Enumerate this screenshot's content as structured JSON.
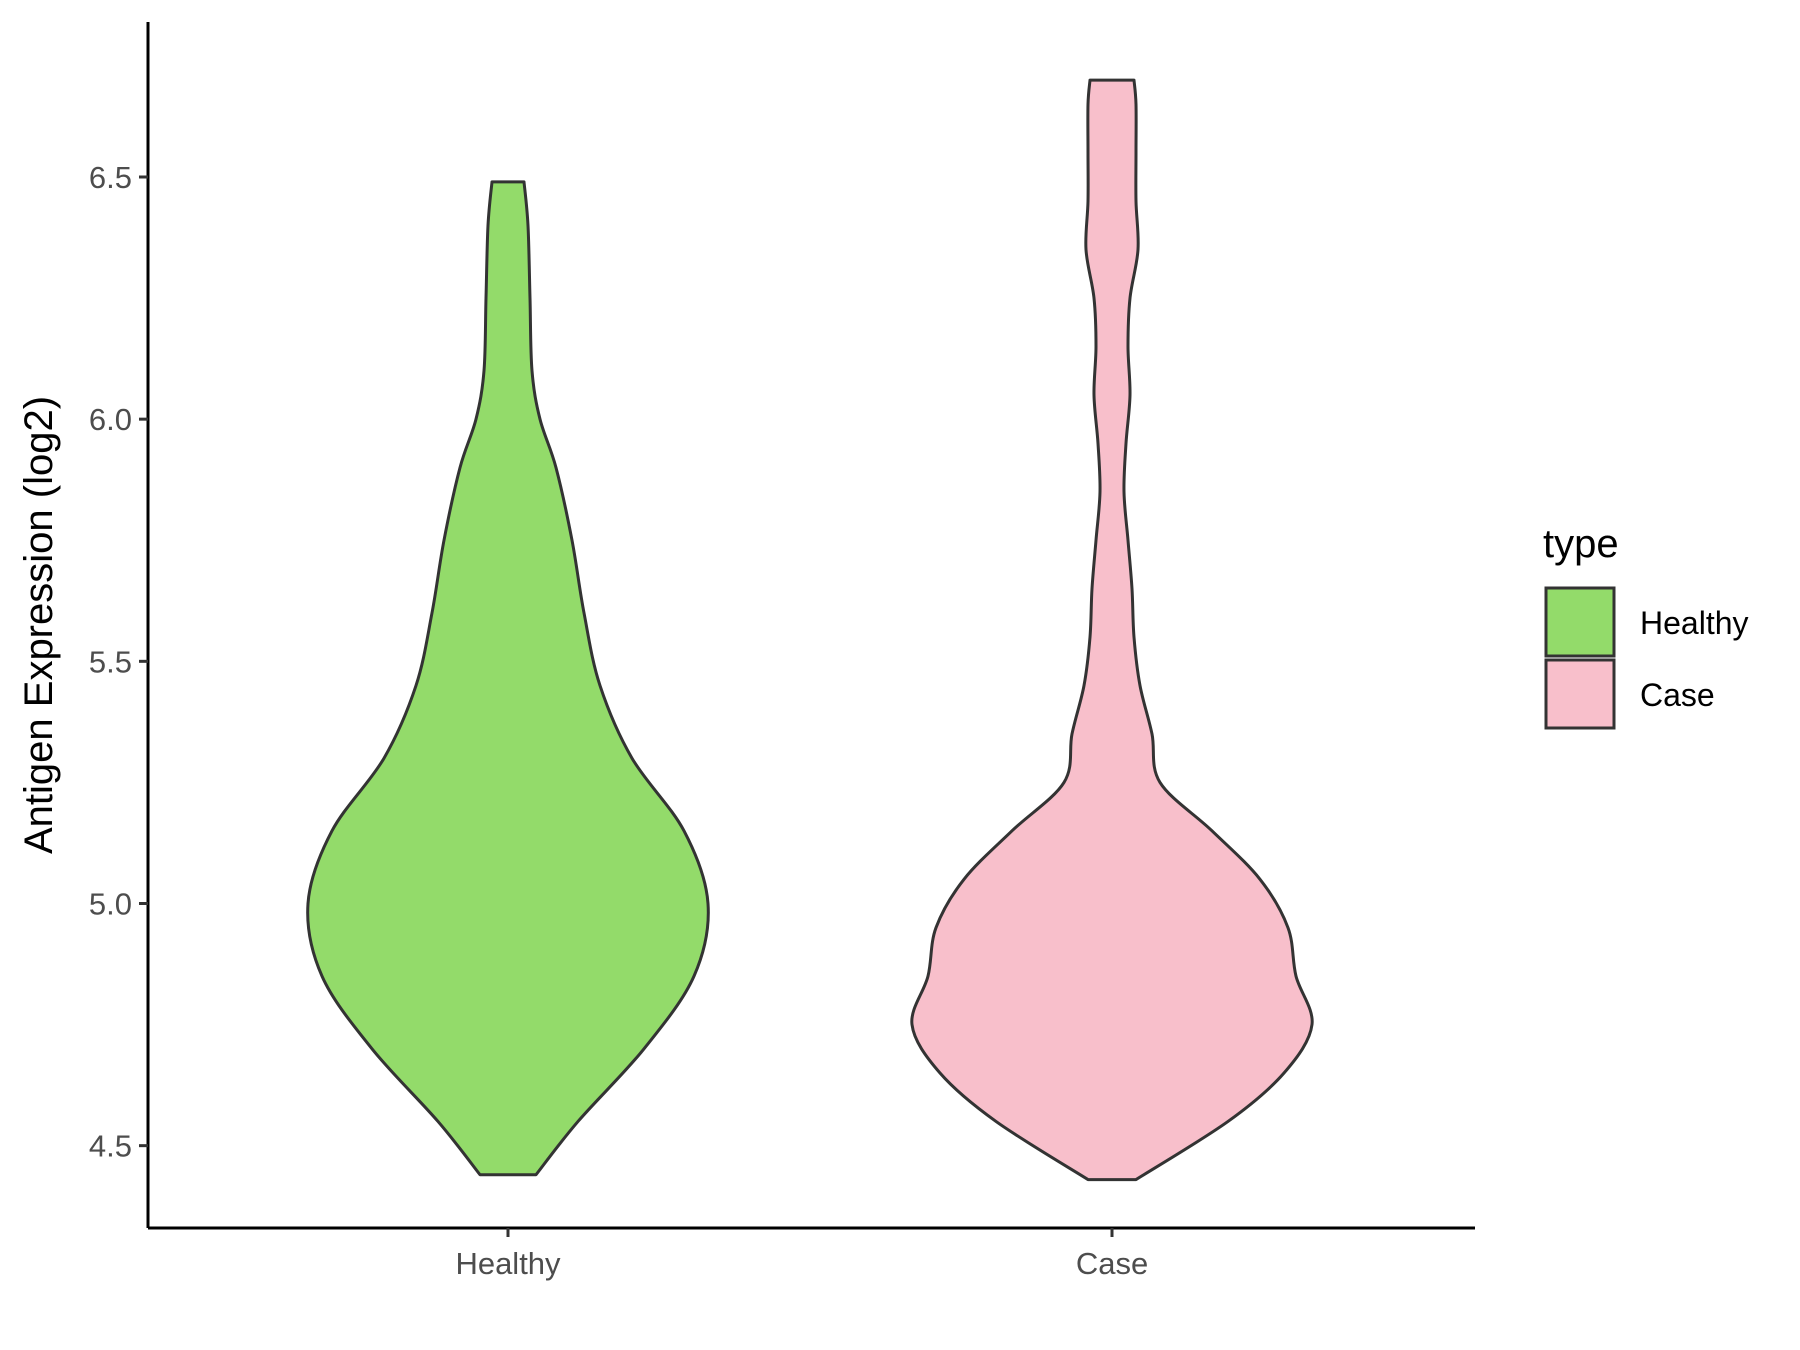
{
  "chart_data": {
    "type": "violin",
    "title": "",
    "xlabel": "",
    "ylabel": "Antigen Expression (log2)",
    "categories": [
      "Healthy",
      "Case"
    ],
    "ylim": [
      4.33,
      6.82
    ],
    "yticks": [
      4.5,
      5.0,
      5.5,
      6.0,
      6.5
    ],
    "ytick_labels": [
      "4.5",
      "5.0",
      "5.5",
      "6.0",
      "6.5"
    ],
    "grid": false,
    "legend": {
      "title": "type",
      "placement": "right",
      "entries": [
        {
          "label": "Healthy",
          "color": "#93DB6A"
        },
        {
          "label": "Case",
          "color": "#F8BFCB"
        }
      ]
    },
    "series": [
      {
        "category": "Healthy",
        "color": "#93DB6A",
        "y_min": 4.44,
        "y_max": 6.49,
        "density_profile": [
          [
            4.44,
            0.14
          ],
          [
            4.55,
            0.35
          ],
          [
            4.7,
            0.68
          ],
          [
            4.85,
            0.93
          ],
          [
            5.0,
            1.0
          ],
          [
            5.15,
            0.88
          ],
          [
            5.3,
            0.62
          ],
          [
            5.45,
            0.46
          ],
          [
            5.6,
            0.38
          ],
          [
            5.75,
            0.32
          ],
          [
            5.9,
            0.24
          ],
          [
            6.0,
            0.16
          ],
          [
            6.1,
            0.12
          ],
          [
            6.25,
            0.11
          ],
          [
            6.4,
            0.1
          ],
          [
            6.49,
            0.08
          ]
        ]
      },
      {
        "category": "Case",
        "color": "#F8BFCB",
        "y_min": 4.43,
        "y_max": 6.7,
        "density_profile": [
          [
            4.43,
            0.12
          ],
          [
            4.55,
            0.58
          ],
          [
            4.65,
            0.86
          ],
          [
            4.75,
            1.0
          ],
          [
            4.85,
            0.92
          ],
          [
            4.95,
            0.88
          ],
          [
            5.05,
            0.74
          ],
          [
            5.15,
            0.5
          ],
          [
            5.25,
            0.24
          ],
          [
            5.35,
            0.2
          ],
          [
            5.45,
            0.14
          ],
          [
            5.55,
            0.11
          ],
          [
            5.65,
            0.1
          ],
          [
            5.75,
            0.08
          ],
          [
            5.85,
            0.06
          ],
          [
            5.95,
            0.07
          ],
          [
            6.05,
            0.09
          ],
          [
            6.15,
            0.08
          ],
          [
            6.25,
            0.09
          ],
          [
            6.35,
            0.13
          ],
          [
            6.45,
            0.12
          ],
          [
            6.55,
            0.12
          ],
          [
            6.65,
            0.12
          ],
          [
            6.7,
            0.11
          ]
        ]
      }
    ]
  }
}
